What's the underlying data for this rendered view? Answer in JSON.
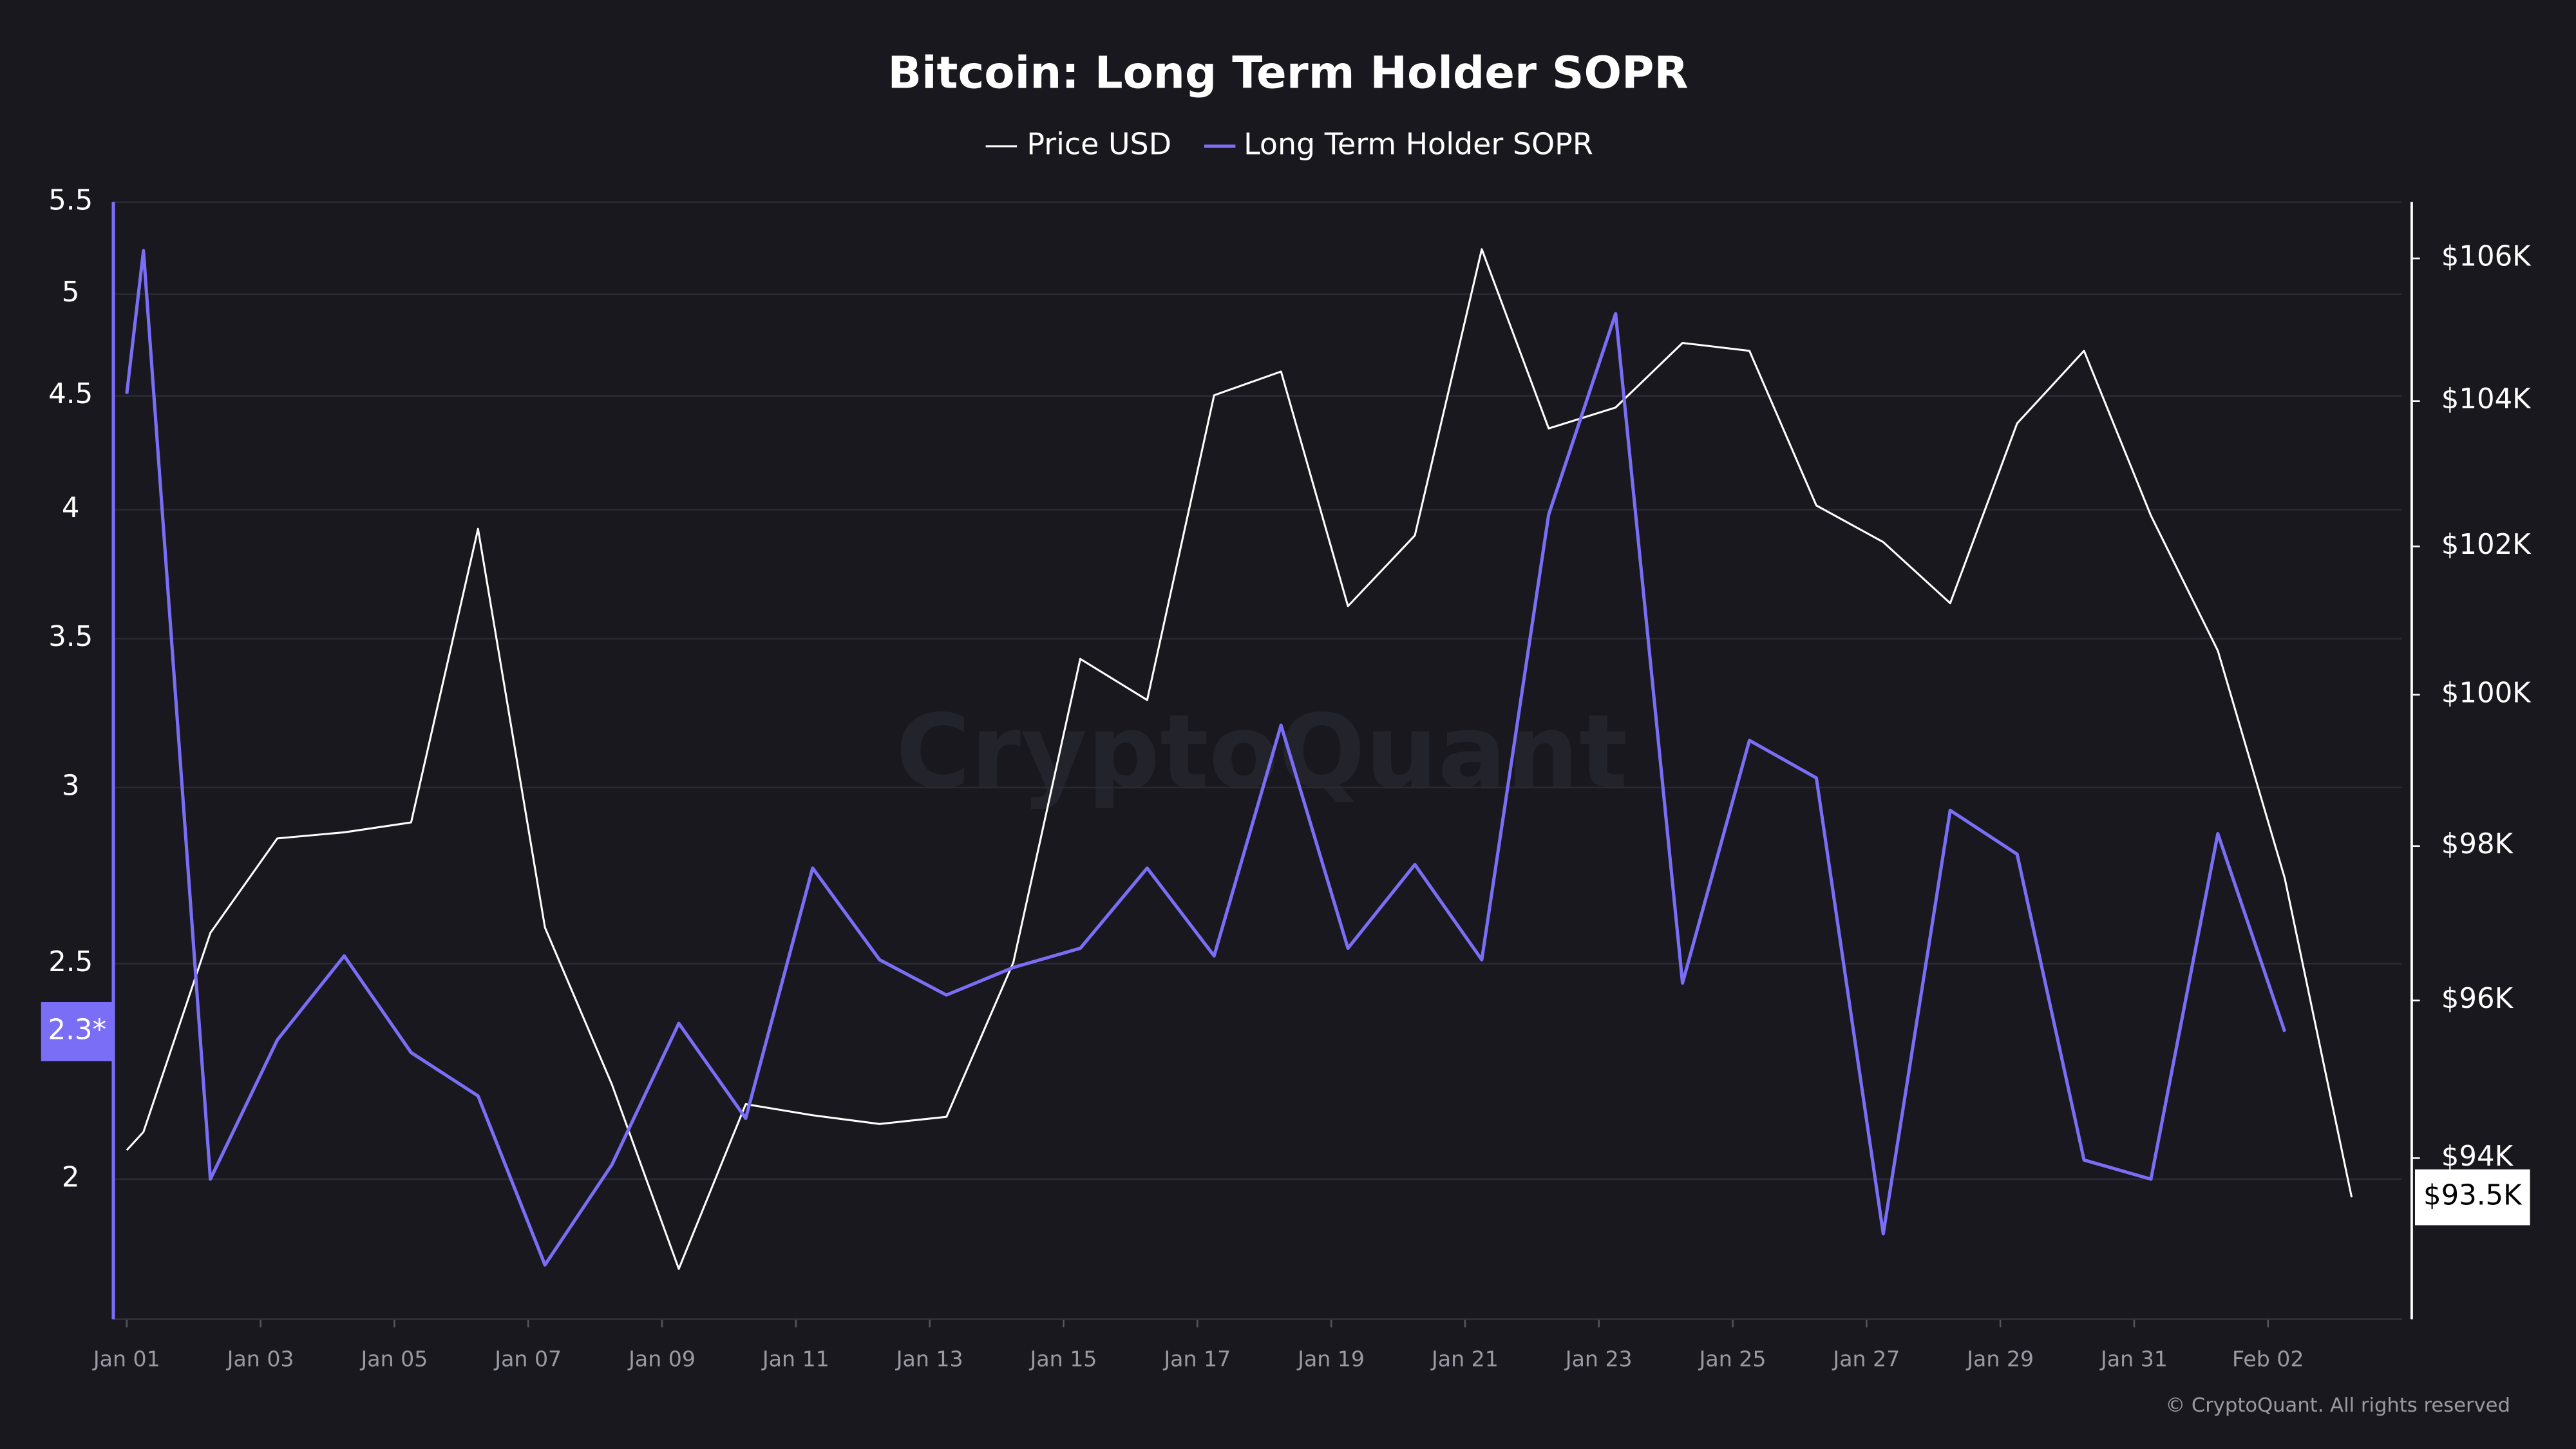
{
  "chart_data": {
    "type": "line",
    "title": "Bitcoin: Long Term Holder SOPR",
    "watermark": "CryptoQuant",
    "copyright": "© CryptoQuant. All rights reserved",
    "xlim": [
      -0.2,
      34
    ],
    "xticks": [
      {
        "value": 0,
        "label": "Jan 01"
      },
      {
        "value": 2,
        "label": "Jan 03"
      },
      {
        "value": 4,
        "label": "Jan 05"
      },
      {
        "value": 6,
        "label": "Jan 07"
      },
      {
        "value": 8,
        "label": "Jan 09"
      },
      {
        "value": 10,
        "label": "Jan 11"
      },
      {
        "value": 12,
        "label": "Jan 13"
      },
      {
        "value": 14,
        "label": "Jan 15"
      },
      {
        "value": 16,
        "label": "Jan 17"
      },
      {
        "value": 18,
        "label": "Jan 19"
      },
      {
        "value": 20,
        "label": "Jan 21"
      },
      {
        "value": 22,
        "label": "Jan 23"
      },
      {
        "value": 24,
        "label": "Jan 25"
      },
      {
        "value": 26,
        "label": "Jan 27"
      },
      {
        "value": 28,
        "label": "Jan 29"
      },
      {
        "value": 30,
        "label": "Jan 31"
      },
      {
        "value": 32,
        "label": "Feb 02"
      }
    ],
    "ylim": [
      1.73,
      5.5
    ],
    "yticks": [
      2,
      2.5,
      3,
      3.5,
      4,
      4.5,
      5,
      5.5
    ],
    "ylog": true,
    "y2lim": [
      92000,
      106800
    ],
    "y2ticks": [
      {
        "value": 94000,
        "label": "$94K"
      },
      {
        "value": 96000,
        "label": "$96K"
      },
      {
        "value": 98000,
        "label": "$98K"
      },
      {
        "value": 100000,
        "label": "$100K"
      },
      {
        "value": 102000,
        "label": "$102K"
      },
      {
        "value": 104000,
        "label": "$104K"
      },
      {
        "value": 106000,
        "label": "$106K"
      }
    ],
    "y2log": true,
    "grid": true,
    "legend": "top",
    "series": [
      {
        "name": "Price USD",
        "color": "#ffffff",
        "axis": "y2",
        "last_label": "$93.5K",
        "x": [
          0,
          0.25,
          1.25,
          2.25,
          3.25,
          4.25,
          5.25,
          6.25,
          7.25,
          8.25,
          9.25,
          10.25,
          11.25,
          12.25,
          13.25,
          14.25,
          15.25,
          16.25,
          17.25,
          18.25,
          19.25,
          20.25,
          21.25,
          22.25,
          23.25,
          24.25,
          25.25,
          26.25,
          27.25,
          28.25,
          29.25,
          30.25,
          31.25,
          32.25,
          33.25
        ],
        "values": [
          94100,
          94330,
          96870,
          98100,
          98180,
          98310,
          102240,
          96940,
          94930,
          92620,
          94680,
          94540,
          94430,
          94520,
          96490,
          100480,
          99930,
          104080,
          104410,
          101190,
          102150,
          106130,
          103620,
          103910,
          104810,
          104700,
          102560,
          102060,
          101230,
          103690,
          104700,
          102420,
          100590,
          97580,
          93510
        ]
      },
      {
        "name": "Long Term Holder SOPR",
        "color": "#7b6ef6",
        "last_label": "2.3*",
        "x": [
          0,
          0.25,
          1.25,
          2.25,
          3.25,
          4.25,
          5.25,
          6.25,
          7.25,
          8.25,
          9.25,
          10.25,
          11.25,
          12.25,
          13.25,
          14.25,
          15.25,
          16.25,
          17.25,
          18.25,
          19.25,
          20.25,
          21.25,
          22.25,
          23.25,
          24.25,
          25.25,
          26.25,
          27.25,
          28.25,
          29.25,
          30.25,
          31.25,
          32.25
        ],
        "values": [
          4.51,
          5.23,
          2.0,
          2.31,
          2.52,
          2.28,
          2.18,
          1.83,
          2.03,
          2.35,
          2.13,
          2.76,
          2.51,
          2.42,
          2.49,
          2.54,
          2.76,
          2.52,
          3.2,
          2.54,
          2.77,
          2.51,
          3.98,
          4.9,
          2.45,
          3.15,
          3.03,
          1.89,
          2.93,
          2.8,
          2.04,
          2.0,
          2.86,
          2.33
        ]
      }
    ]
  }
}
